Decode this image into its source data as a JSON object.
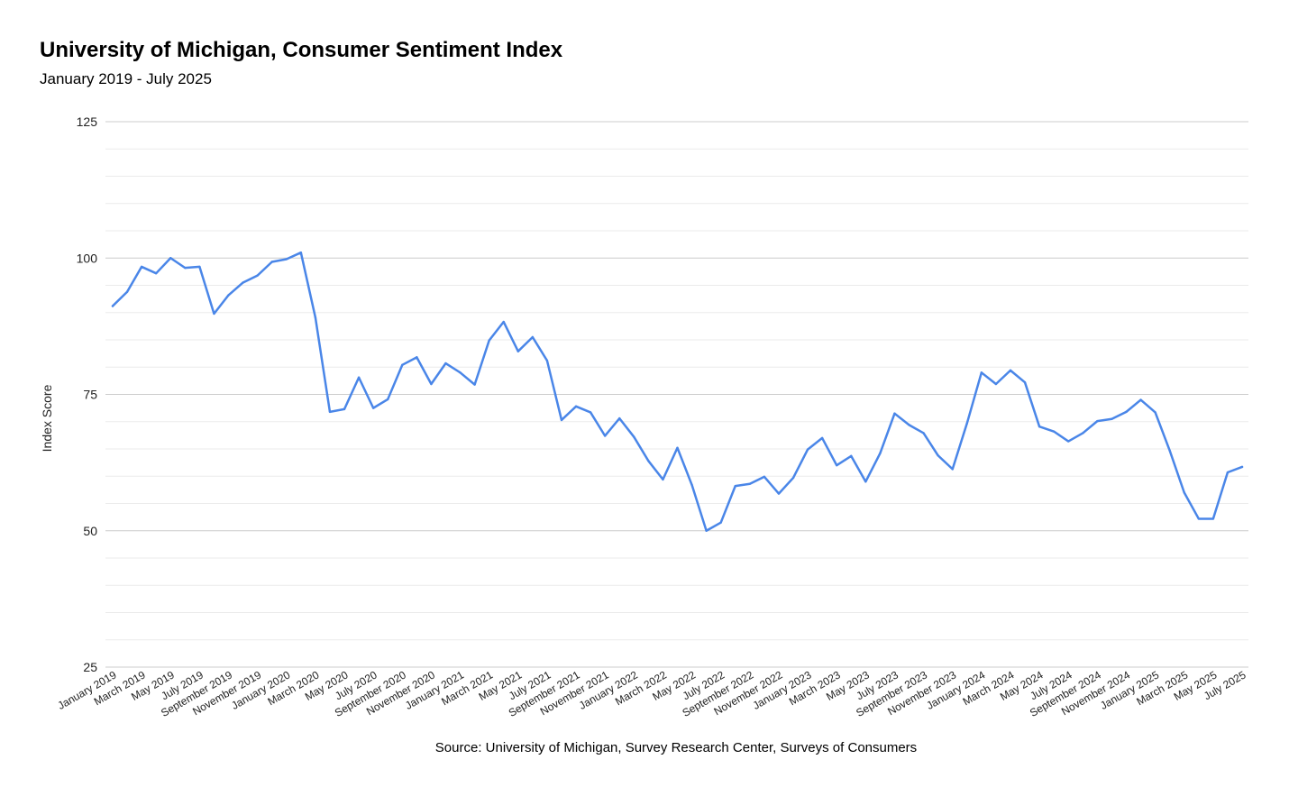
{
  "chart_data": {
    "type": "line",
    "title": "University of Michigan, Consumer Sentiment Index",
    "subtitle": "January 2019 - July 2025",
    "ylabel": "Index Score",
    "xlabel": "",
    "ylim": [
      25,
      125
    ],
    "y_ticks": [
      25,
      50,
      75,
      100,
      125
    ],
    "grid": true,
    "source": "Source: University of Michigan, Survey Research Center, Surveys of Consumers",
    "color": "#4a86e8",
    "x_tick_labels": [
      "January 2019",
      "March 2019",
      "May 2019",
      "July 2019",
      "September 2019",
      "November 2019",
      "January 2020",
      "March 2020",
      "May 2020",
      "July 2020",
      "September 2020",
      "November 2020",
      "January 2021",
      "March 2021",
      "May 2021",
      "July 2021",
      "September 2021",
      "November 2021",
      "January 2022",
      "March 2022",
      "May 2022",
      "July 2022",
      "September 2022",
      "November 2022",
      "January 2023",
      "March 2023",
      "May 2023",
      "July 2023",
      "September 2023",
      "November 2023",
      "January 2024",
      "March 2024",
      "May 2024",
      "July 2024",
      "September 2024",
      "November 2024",
      "January 2025",
      "March 2025",
      "May 2025",
      "July 2025"
    ],
    "x": [
      "2019-01",
      "2019-02",
      "2019-03",
      "2019-04",
      "2019-05",
      "2019-06",
      "2019-07",
      "2019-08",
      "2019-09",
      "2019-10",
      "2019-11",
      "2019-12",
      "2020-01",
      "2020-02",
      "2020-03",
      "2020-04",
      "2020-05",
      "2020-06",
      "2020-07",
      "2020-08",
      "2020-09",
      "2020-10",
      "2020-11",
      "2020-12",
      "2021-01",
      "2021-02",
      "2021-03",
      "2021-04",
      "2021-05",
      "2021-06",
      "2021-07",
      "2021-08",
      "2021-09",
      "2021-10",
      "2021-11",
      "2021-12",
      "2022-01",
      "2022-02",
      "2022-03",
      "2022-04",
      "2022-05",
      "2022-06",
      "2022-07",
      "2022-08",
      "2022-09",
      "2022-10",
      "2022-11",
      "2022-12",
      "2023-01",
      "2023-02",
      "2023-03",
      "2023-04",
      "2023-05",
      "2023-06",
      "2023-07",
      "2023-08",
      "2023-09",
      "2023-10",
      "2023-11",
      "2023-12",
      "2024-01",
      "2024-02",
      "2024-03",
      "2024-04",
      "2024-05",
      "2024-06",
      "2024-07",
      "2024-08",
      "2024-09",
      "2024-10",
      "2024-11",
      "2024-12",
      "2025-01",
      "2025-02",
      "2025-03",
      "2025-04",
      "2025-05",
      "2025-06",
      "2025-07"
    ],
    "series": [
      {
        "values": [
          91.2,
          93.8,
          98.4,
          97.2,
          100.0,
          98.2,
          98.4,
          89.8,
          93.2,
          95.5,
          96.8,
          99.3,
          99.8,
          101.0,
          89.1,
          71.8,
          72.3,
          78.1,
          72.5,
          74.1,
          80.4,
          81.8,
          76.9,
          80.7,
          79.0,
          76.8,
          84.9,
          88.3,
          82.9,
          85.5,
          81.2,
          70.3,
          72.8,
          71.7,
          67.4,
          70.6,
          67.2,
          62.8,
          59.4,
          65.2,
          58.4,
          50.0,
          51.5,
          58.2,
          58.6,
          59.9,
          56.8,
          59.7,
          64.9,
          67.0,
          62.0,
          63.7,
          59.0,
          64.2,
          71.5,
          69.4,
          67.9,
          63.8,
          61.3,
          69.7,
          79.0,
          76.9,
          79.4,
          77.2,
          69.1,
          68.2,
          66.4,
          67.9,
          70.1,
          70.5,
          71.8,
          74.0,
          71.7,
          64.7,
          57.0,
          52.2,
          52.2,
          60.7,
          61.7
        ]
      }
    ]
  }
}
